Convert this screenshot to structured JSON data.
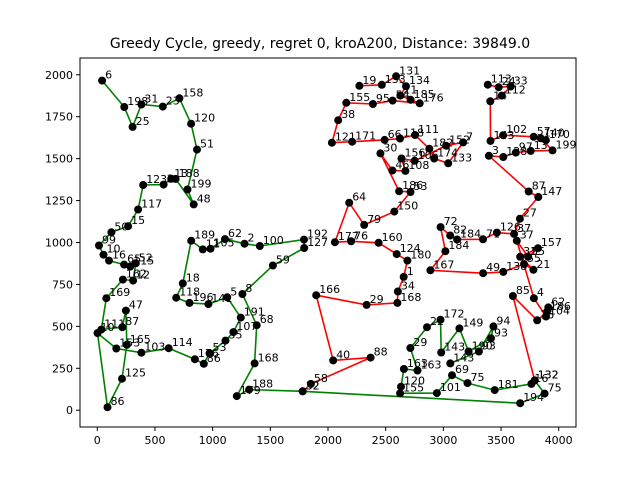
{
  "chart_data": {
    "type": "line",
    "title": "Greedy Cycle, greedy, regret 0, kroA200, Distance: 39849.0",
    "xlabel": "",
    "ylabel": "",
    "xlim": [
      -150,
      4150
    ],
    "ylim": [
      -100,
      2100
    ],
    "grid": false,
    "x_ticks": [
      0,
      500,
      1000,
      1500,
      2000,
      2500,
      3000,
      3500,
      4000
    ],
    "y_ticks": [
      0,
      250,
      500,
      750,
      1000,
      1250,
      1500,
      1750,
      2000
    ],
    "series": [
      {
        "color": "#008000",
        "values": [
          [
            42,
            1965,
            6
          ],
          [
            234,
            1808,
            198
          ],
          [
            306,
            1689,
            25
          ],
          [
            382,
            1823,
            31
          ],
          [
            568,
            1810,
            23
          ],
          [
            712,
            1860,
            158
          ],
          [
            813,
            1708,
            120
          ],
          [
            864,
            1554,
            51
          ],
          [
            782,
            1316,
            199
          ],
          [
            836,
            1227,
            48
          ],
          [
            679,
            1379,
            188
          ],
          [
            641,
            1380,
            13
          ],
          [
            575,
            1345,
            3
          ],
          [
            398,
            1343,
            123
          ],
          [
            354,
            1197,
            117
          ],
          [
            267,
            1097,
            15
          ],
          [
            122,
            1061,
            50
          ],
          [
            15,
            982,
            99
          ],
          [
            54,
            927,
            10
          ],
          [
            101,
            892,
            16
          ],
          [
            232,
            868,
            65
          ],
          [
            286,
            857,
            115
          ],
          [
            334,
            876,
            52
          ],
          [
            310,
            773,
            12
          ],
          [
            222,
            779,
            162
          ],
          [
            78,
            668,
            169
          ],
          [
            35,
            481,
            111
          ],
          [
            217,
            495,
            87
          ],
          [
            248,
            594,
            47
          ],
          [
            256,
            390,
            165
          ],
          [
            214,
            188,
            125
          ],
          [
            88,
            18,
            86
          ],
          [
            2,
            460,
            10
          ],
          [
            165,
            368,
            153
          ],
          [
            382,
            343,
            103
          ],
          [
            619,
            370,
            114
          ],
          [
            846,
            304,
            176
          ],
          [
            923,
            277,
            86
          ],
          [
            973,
            340,
            53
          ],
          [
            1111,
            415,
            35
          ],
          [
            1180,
            466,
            107
          ],
          [
            1244,
            552,
            191
          ],
          [
            1126,
            673,
            5
          ],
          [
            963,
            633,
            141
          ],
          [
            799,
            640,
            196
          ],
          [
            684,
            671,
            118
          ],
          [
            741,
            756,
            18
          ],
          [
            814,
            1011,
            189
          ],
          [
            915,
            959,
            11
          ],
          [
            981,
            963,
            105
          ],
          [
            1107,
            1020,
            62
          ],
          [
            1276,
            993,
            2
          ],
          [
            1409,
            979,
            100
          ],
          [
            1792,
            1017,
            192
          ],
          [
            1794,
            967,
            127
          ],
          [
            1522,
            863,
            59
          ],
          [
            1258,
            693,
            8
          ],
          [
            1382,
            507,
            68
          ],
          [
            1364,
            279,
            168
          ],
          [
            1209,
            84,
            179
          ],
          [
            1316,
            123,
            188
          ],
          [
            1781,
            113,
            32
          ],
          [
            3666,
            42,
            194
          ],
          [
            3878,
            99,
            75
          ],
          [
            3792,
            178,
            132
          ],
          [
            3763,
            157,
            16
          ],
          [
            3445,
            120,
            181
          ],
          [
            3209,
            162,
            75
          ],
          [
            3075,
            209,
            69
          ],
          [
            2944,
            102,
            101
          ],
          [
            2625,
            101,
            155
          ],
          [
            2633,
            140,
            120
          ],
          [
            2658,
            246,
            163
          ],
          [
            2776,
            237,
            163
          ],
          [
            2714,
            371,
            29
          ],
          [
            2858,
            495,
            22
          ],
          [
            2975,
            540,
            172
          ],
          [
            2981,
            344,
            143
          ],
          [
            3139,
            488,
            149
          ],
          [
            3219,
            350,
            190
          ],
          [
            3413,
            429,
            93
          ],
          [
            3434,
            500,
            94
          ],
          [
            3308,
            350,
            93
          ],
          [
            3060,
            279,
            143
          ]
        ]
      },
      {
        "color": "#ff0000",
        "values": [
          [
            2272,
            1934,
            19
          ],
          [
            2466,
            1940,
            133
          ],
          [
            2590,
            1991,
            131
          ],
          [
            2676,
            1932,
            134
          ],
          [
            2628,
            1876,
            21
          ],
          [
            2716,
            1851,
            185
          ],
          [
            2795,
            1830,
            176
          ],
          [
            2560,
            1846,
            54
          ],
          [
            2389,
            1826,
            95
          ],
          [
            2159,
            1833,
            155
          ],
          [
            2088,
            1729,
            38
          ],
          [
            2034,
            1595,
            121
          ],
          [
            2209,
            1601,
            171
          ],
          [
            2491,
            1612,
            66
          ],
          [
            2624,
            1620,
            118
          ],
          [
            2754,
            1641,
            111
          ],
          [
            2878,
            1559,
            182
          ],
          [
            2921,
            1501,
            174
          ],
          [
            3042,
            1472,
            133
          ],
          [
            3171,
            1597,
            7
          ],
          [
            3024,
            1577,
            152
          ],
          [
            2752,
            1487,
            106
          ],
          [
            2637,
            1501,
            156
          ],
          [
            2671,
            1427,
            108
          ],
          [
            2558,
            1429,
            46
          ],
          [
            2454,
            1531,
            30
          ],
          [
            2616,
            1306,
            186
          ],
          [
            2715,
            1301,
            53
          ],
          [
            2575,
            1184,
            150
          ],
          [
            2314,
            1105,
            79
          ],
          [
            2184,
            1237,
            64
          ],
          [
            2060,
            1002,
            177
          ],
          [
            2200,
            1007,
            76
          ],
          [
            2439,
            998,
            160
          ],
          [
            2596,
            931,
            124
          ],
          [
            2688,
            892,
            180
          ],
          [
            2656,
            795,
            1
          ],
          [
            2606,
            708,
            34
          ],
          [
            2602,
            640,
            168
          ],
          [
            2335,
            628,
            29
          ],
          [
            1898,
            686,
            166
          ],
          [
            2045,
            297,
            40
          ],
          [
            2369,
            314,
            88
          ],
          [
            1852,
            157,
            58
          ],
          [
            1781,
            113,
            32
          ]
        ]
      },
      {
        "color": "#ff0000",
        "values": [
          [
            3385,
            1941,
            113
          ],
          [
            3480,
            1926,
            24
          ],
          [
            3584,
            1930,
            33
          ],
          [
            3507,
            1876,
            112
          ],
          [
            3407,
            1842,
            14
          ],
          [
            3409,
            1606,
            143
          ],
          [
            3518,
            1640,
            102
          ],
          [
            3783,
            1630,
            57
          ],
          [
            3889,
            1610,
            170
          ],
          [
            3845,
            1621,
            140
          ],
          [
            3946,
            1549,
            199
          ],
          [
            3757,
            1546,
            13
          ],
          [
            3628,
            1536,
            97
          ],
          [
            3520,
            1510,
            128
          ],
          [
            3395,
            1517,
            3
          ],
          [
            3740,
            1304,
            87
          ],
          [
            3823,
            1271,
            147
          ],
          [
            3664,
            1142,
            27
          ],
          [
            3613,
            1051,
            37
          ],
          [
            3464,
            1059,
            126
          ],
          [
            3344,
            1019,
            71
          ],
          [
            3119,
            1018,
            184
          ],
          [
            3059,
            1042,
            82
          ],
          [
            2976,
            1092,
            72
          ],
          [
            3018,
            948,
            184
          ],
          [
            2888,
            834,
            167
          ],
          [
            3345,
            817,
            49
          ],
          [
            3520,
            825,
            138
          ],
          [
            3699,
            871,
            55
          ],
          [
            3781,
            837,
            21
          ],
          [
            3666,
            915,
            31
          ],
          [
            3820,
            966,
            157
          ],
          [
            3735,
            915,
            55
          ],
          [
            3637,
            1011,
            37
          ],
          [
            3785,
            668,
            4
          ],
          [
            3890,
            559,
            104
          ],
          [
            3910,
            613,
            62
          ],
          [
            3898,
            587,
            186
          ],
          [
            3814,
            536,
            16
          ],
          [
            3603,
            681,
            85
          ],
          [
            3792,
            178,
            132
          ]
        ]
      }
    ]
  }
}
